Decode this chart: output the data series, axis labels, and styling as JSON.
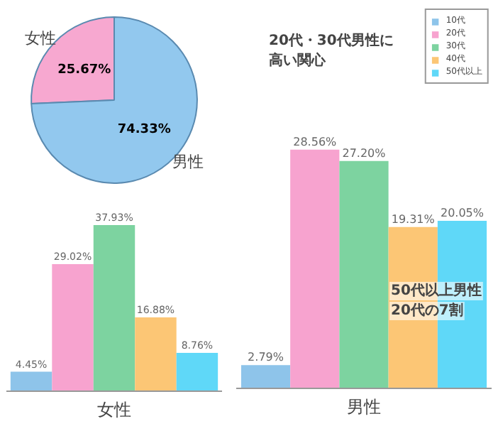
{
  "chart_data": [
    {
      "type": "pie",
      "categories": [
        "女性",
        "男性"
      ],
      "values": [
        25.67,
        74.33
      ],
      "colors": [
        "#f7a8d0",
        "#92c8ee"
      ],
      "value_labels": [
        "25.67%",
        "74.33%"
      ]
    },
    {
      "type": "bar",
      "categories": [
        null,
        null,
        null,
        null,
        null
      ],
      "xlabel": "女性",
      "legend": false,
      "values": [
        4.45,
        29.02,
        37.93,
        16.88,
        8.76
      ],
      "colors": [
        "#8ec4ea",
        "#f7a3cf",
        "#7dd3a0",
        "#fcc675",
        "#5fd8f8"
      ],
      "value_labels": [
        "4.45%",
        "29.02%",
        "37.93%",
        "16.88%",
        "8.76%"
      ]
    },
    {
      "type": "bar",
      "categories": [
        null,
        null,
        null,
        null,
        null
      ],
      "xlabel": "男性",
      "legend": "top right",
      "stacked": true,
      "annotations": [
        "20代・30代男性に",
        "高い関心",
        "50代以上男性",
        "20代の7割"
      ],
      "series": [
        {
          "name": "10代",
          "color": "#8ec4ea",
          "values": [
            2.79,
            null,
            null,
            null,
            null
          ],
          "value_labels": [
            "2.79%",
            null,
            null,
            null,
            null
          ]
        },
        {
          "name": "20代",
          "color": "#f7a3cf",
          "values": [
            null,
            28.56,
            null,
            null,
            null
          ],
          "value_labels": [
            null,
            "28.56%",
            null,
            null,
            null
          ]
        },
        {
          "name": "30代",
          "color": "#7dd3a0",
          "values": [
            null,
            null,
            27.2,
            null,
            null
          ],
          "value_labels": [
            null,
            null,
            "27.20%",
            null,
            null
          ]
        },
        {
          "name": "40代",
          "color": "#fcc675",
          "values": [
            null,
            null,
            null,
            19.31,
            null
          ],
          "value_labels": [
            null,
            null,
            null,
            "19.31%",
            null
          ]
        },
        {
          "name": "50代以上",
          "color": "#5fd8f8",
          "values": [
            null,
            null,
            null,
            null,
            20.05
          ],
          "value_labels": [
            null,
            null,
            null,
            null,
            "20.05%"
          ]
        }
      ]
    }
  ]
}
